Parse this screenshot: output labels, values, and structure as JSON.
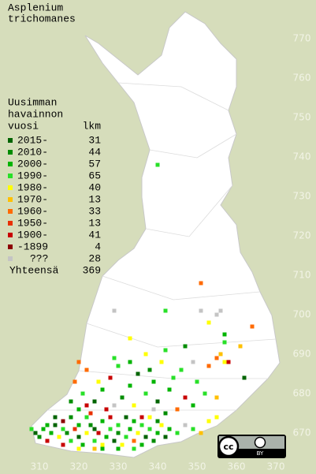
{
  "title": [
    "Asplenium",
    "trichomanes"
  ],
  "legend": {
    "header": [
      "Uusimman",
      "havainnon",
      "vuosi"
    ],
    "count_header": "lkm",
    "items": [
      {
        "label": "2015-",
        "count": 31,
        "color": "#006400"
      },
      {
        "label": "2010-",
        "count": 44,
        "color": "#008c00"
      },
      {
        "label": "2000-",
        "count": 57,
        "color": "#00b400"
      },
      {
        "label": "1990-",
        "count": 65,
        "color": "#28e028"
      },
      {
        "label": "1980-",
        "count": 40,
        "color": "#ffff00"
      },
      {
        "label": "1970-",
        "count": 13,
        "color": "#ffc000"
      },
      {
        "label": "1960-",
        "count": 33,
        "color": "#ff6a00"
      },
      {
        "label": "1950-",
        "count": 13,
        "color": "#e83000"
      },
      {
        "label": "1900-",
        "count": 41,
        "color": "#c80000"
      },
      {
        "label": "-1899",
        "count": 4,
        "color": "#8c0000"
      },
      {
        "label": "???",
        "count": 28,
        "color": "#c4c4c4"
      }
    ],
    "total_label": "Yhteensä",
    "total": 369
  },
  "x_labels": [
    310,
    320,
    330,
    340,
    350,
    360,
    370
  ],
  "y_labels": [
    670,
    680,
    690,
    700,
    710,
    720,
    730,
    740,
    750,
    760,
    770
  ],
  "points": [
    [
      308,
      671,
      3
    ],
    [
      309,
      670,
      0
    ],
    [
      310,
      669,
      1
    ],
    [
      311,
      671,
      2
    ],
    [
      312,
      668,
      8
    ],
    [
      313,
      670,
      2
    ],
    [
      314,
      672,
      0
    ],
    [
      315,
      669,
      4
    ],
    [
      316,
      667,
      8
    ],
    [
      317,
      670,
      1
    ],
    [
      318,
      668,
      3
    ],
    [
      319,
      671,
      7
    ],
    [
      320,
      669,
      0
    ],
    [
      321,
      667,
      2
    ],
    [
      322,
      670,
      4
    ],
    [
      323,
      672,
      1
    ],
    [
      324,
      668,
      3
    ],
    [
      325,
      670,
      8
    ],
    [
      326,
      667,
      4
    ],
    [
      327,
      669,
      2
    ],
    [
      328,
      671,
      3
    ],
    [
      329,
      668,
      0
    ],
    [
      330,
      670,
      1
    ],
    [
      331,
      667,
      4
    ],
    [
      332,
      669,
      3
    ],
    [
      333,
      671,
      2
    ],
    [
      334,
      668,
      6
    ],
    [
      335,
      670,
      4
    ],
    [
      336,
      667,
      2
    ],
    [
      337,
      669,
      0
    ],
    [
      338,
      671,
      3
    ],
    [
      339,
      668,
      1
    ],
    [
      340,
      670,
      2
    ],
    [
      341,
      672,
      4
    ],
    [
      342,
      669,
      0
    ],
    [
      343,
      671,
      2
    ],
    [
      345,
      670,
      3
    ],
    [
      347,
      672,
      10
    ],
    [
      349,
      671,
      3
    ],
    [
      351,
      670,
      5
    ],
    [
      353,
      673,
      4
    ],
    [
      355,
      674,
      4
    ],
    [
      312,
      672,
      2
    ],
    [
      314,
      674,
      0
    ],
    [
      316,
      673,
      9
    ],
    [
      318,
      674,
      1
    ],
    [
      320,
      672,
      2
    ],
    [
      322,
      674,
      3
    ],
    [
      324,
      671,
      0
    ],
    [
      326,
      673,
      2
    ],
    [
      328,
      674,
      8
    ],
    [
      330,
      672,
      3
    ],
    [
      332,
      674,
      0
    ],
    [
      334,
      673,
      2
    ],
    [
      336,
      672,
      3
    ],
    [
      338,
      674,
      4
    ],
    [
      340,
      673,
      1
    ],
    [
      316,
      671,
      3
    ],
    [
      320,
      666,
      4
    ],
    [
      326,
      666,
      2
    ],
    [
      330,
      666,
      2
    ],
    [
      334,
      666,
      3
    ],
    [
      324,
      666,
      5
    ],
    [
      320,
      676,
      2
    ],
    [
      318,
      678,
      1
    ],
    [
      321,
      680,
      3
    ],
    [
      319,
      683,
      6
    ],
    [
      322,
      686,
      6
    ],
    [
      320,
      688,
      6
    ],
    [
      324,
      678,
      0
    ],
    [
      326,
      681,
      2
    ],
    [
      328,
      684,
      8
    ],
    [
      330,
      687,
      3
    ],
    [
      327,
      676,
      8
    ],
    [
      331,
      679,
      1
    ],
    [
      333,
      682,
      2
    ],
    [
      335,
      685,
      0
    ],
    [
      334,
      677,
      4
    ],
    [
      337,
      680,
      3
    ],
    [
      339,
      683,
      2
    ],
    [
      338,
      686,
      1
    ],
    [
      341,
      688,
      4
    ],
    [
      340,
      678,
      0
    ],
    [
      343,
      681,
      2
    ],
    [
      345,
      676,
      6
    ],
    [
      347,
      679,
      8
    ],
    [
      349,
      677,
      2
    ],
    [
      344,
      684,
      3
    ],
    [
      342,
      675,
      1
    ],
    [
      336,
      674,
      8
    ],
    [
      329,
      677,
      10
    ],
    [
      322,
      677,
      8
    ],
    [
      352,
      680,
      3
    ],
    [
      355,
      679,
      5
    ],
    [
      350,
      683,
      3
    ],
    [
      346,
      686,
      3
    ],
    [
      333,
      688,
      2
    ],
    [
      329,
      689,
      3
    ],
    [
      325,
      683,
      4
    ],
    [
      323,
      675,
      7
    ],
    [
      339,
      676,
      10
    ],
    [
      342,
      691,
      3
    ],
    [
      337,
      690,
      4
    ],
    [
      349,
      688,
      10
    ],
    [
      353,
      687,
      6
    ],
    [
      355,
      689,
      6
    ],
    [
      357,
      688,
      4
    ],
    [
      356,
      690,
      5
    ],
    [
      358,
      688,
      8
    ],
    [
      362,
      684,
      0
    ],
    [
      364,
      697,
      6
    ],
    [
      361,
      692,
      5
    ],
    [
      347,
      692,
      1
    ],
    [
      353,
      698,
      4
    ],
    [
      355,
      700,
      10
    ],
    [
      357,
      693,
      3
    ],
    [
      351,
      701,
      10
    ],
    [
      342,
      701,
      3
    ],
    [
      333,
      694,
      4
    ],
    [
      329,
      701,
      10
    ],
    [
      357,
      695,
      2
    ],
    [
      340,
      738,
      3
    ],
    [
      351,
      708,
      6
    ],
    [
      356,
      701,
      10
    ]
  ],
  "license": {
    "icon": "cc",
    "label": "BY"
  }
}
